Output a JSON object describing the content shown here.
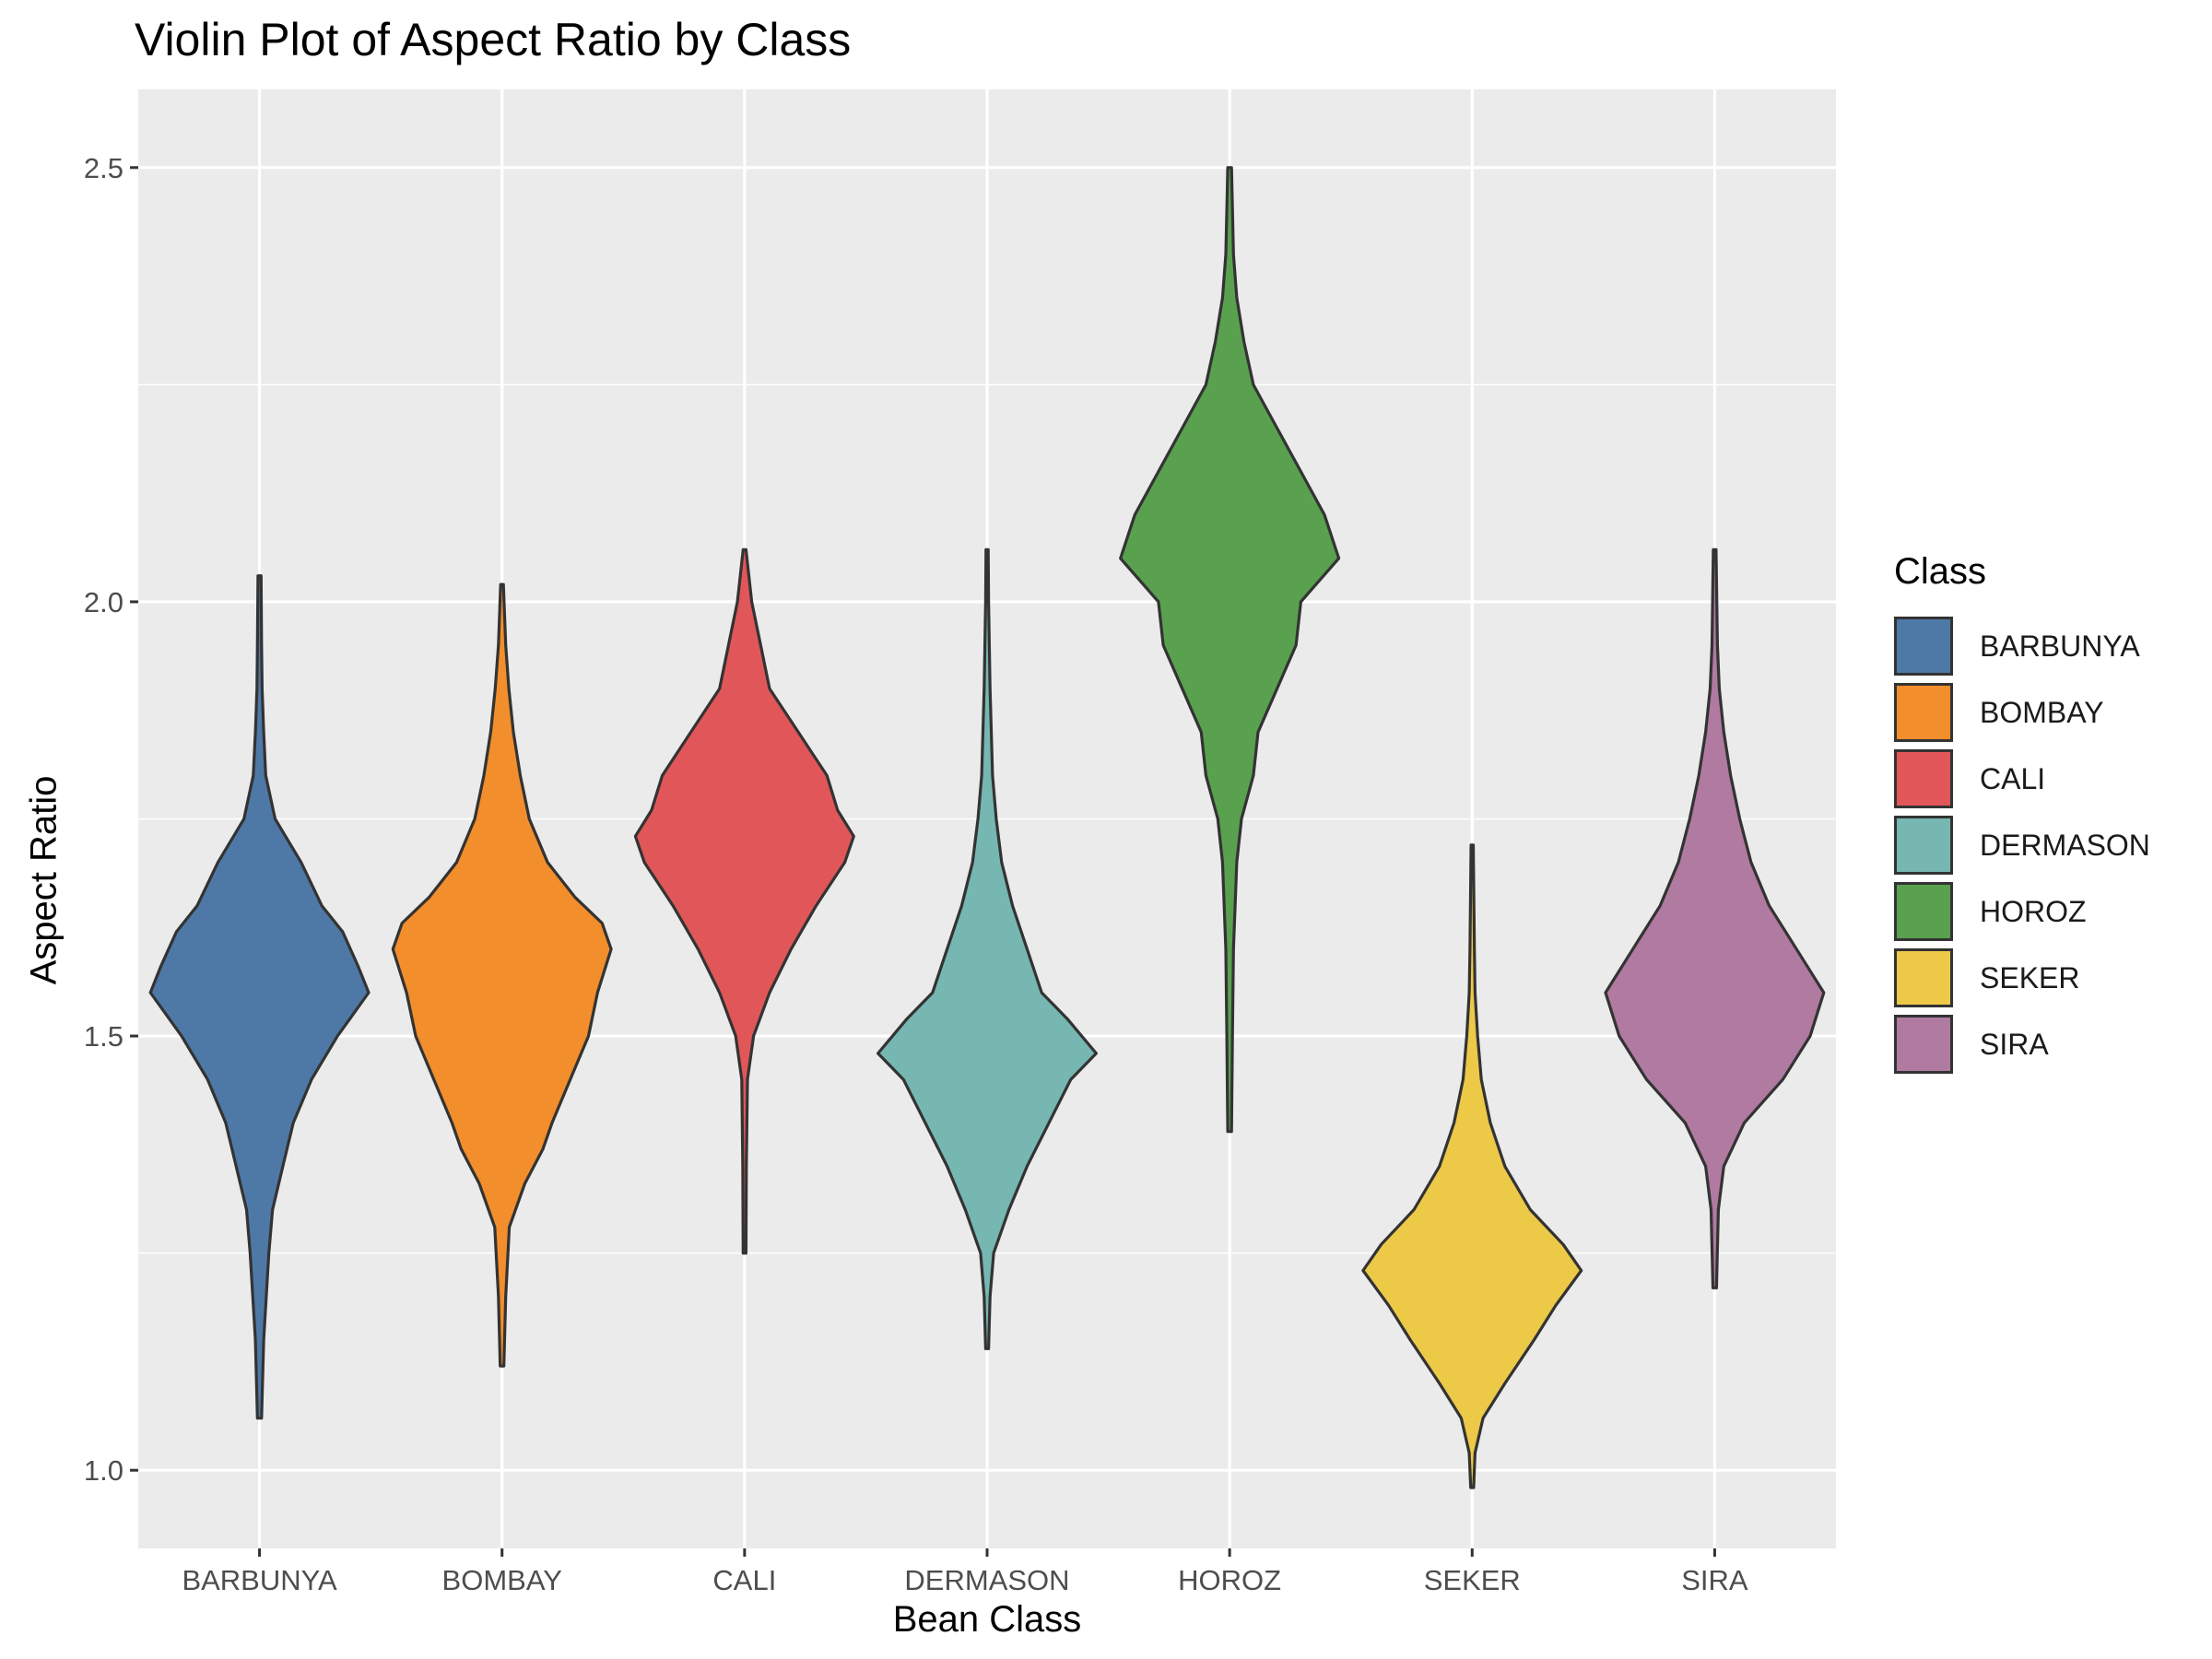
{
  "chart_data": {
    "type": "violin",
    "title": "Violin Plot of Aspect Ratio by Class",
    "xlabel": "Bean Class",
    "ylabel": "Aspect Ratio",
    "ylim": [
      0.91,
      2.59
    ],
    "yticks": [
      "1.0",
      "1.5",
      "2.0",
      "2.5"
    ],
    "grid": true,
    "legend": {
      "title": "Class",
      "position": "right",
      "entries": [
        "BARBUNYA",
        "BOMBAY",
        "CALI",
        "DERMASON",
        "HOROZ",
        "SEKER",
        "SIRA"
      ]
    },
    "categories": [
      "BARBUNYA",
      "BOMBAY",
      "CALI",
      "DERMASON",
      "HOROZ",
      "SEKER",
      "SIRA"
    ],
    "series": [
      {
        "name": "BARBUNYA",
        "color": "#4E79A7",
        "profile": [
          [
            1.06,
            0.004
          ],
          [
            1.15,
            0.008
          ],
          [
            1.25,
            0.018
          ],
          [
            1.3,
            0.025
          ],
          [
            1.35,
            0.045
          ],
          [
            1.4,
            0.065
          ],
          [
            1.45,
            0.1
          ],
          [
            1.5,
            0.15
          ],
          [
            1.55,
            0.21
          ],
          [
            1.58,
            0.19
          ],
          [
            1.62,
            0.16
          ],
          [
            1.65,
            0.12
          ],
          [
            1.7,
            0.08
          ],
          [
            1.75,
            0.03
          ],
          [
            1.8,
            0.012
          ],
          [
            1.85,
            0.008
          ],
          [
            1.9,
            0.005
          ],
          [
            1.95,
            0.004
          ],
          [
            2.03,
            0.003
          ]
        ]
      },
      {
        "name": "BOMBAY",
        "color": "#F28E2B",
        "profile": [
          [
            1.12,
            0.004
          ],
          [
            1.2,
            0.008
          ],
          [
            1.28,
            0.016
          ],
          [
            1.33,
            0.05
          ],
          [
            1.37,
            0.09
          ],
          [
            1.4,
            0.11
          ],
          [
            1.45,
            0.15
          ],
          [
            1.5,
            0.19
          ],
          [
            1.55,
            0.21
          ],
          [
            1.6,
            0.24
          ],
          [
            1.63,
            0.22
          ],
          [
            1.66,
            0.16
          ],
          [
            1.7,
            0.1
          ],
          [
            1.75,
            0.06
          ],
          [
            1.8,
            0.04
          ],
          [
            1.85,
            0.025
          ],
          [
            1.9,
            0.015
          ],
          [
            1.95,
            0.008
          ],
          [
            2.02,
            0.003
          ]
        ]
      },
      {
        "name": "CALI",
        "color": "#E15759",
        "profile": [
          [
            1.25,
            0.004
          ],
          [
            1.35,
            0.005
          ],
          [
            1.45,
            0.008
          ],
          [
            1.5,
            0.025
          ],
          [
            1.55,
            0.07
          ],
          [
            1.6,
            0.13
          ],
          [
            1.65,
            0.2
          ],
          [
            1.7,
            0.28
          ],
          [
            1.73,
            0.305
          ],
          [
            1.76,
            0.26
          ],
          [
            1.8,
            0.23
          ],
          [
            1.85,
            0.15
          ],
          [
            1.9,
            0.07
          ],
          [
            1.95,
            0.045
          ],
          [
            2.0,
            0.02
          ],
          [
            2.06,
            0.004
          ]
        ]
      },
      {
        "name": "DERMASON",
        "color": "#76B7B2",
        "profile": [
          [
            1.14,
            0.004
          ],
          [
            1.2,
            0.008
          ],
          [
            1.25,
            0.018
          ],
          [
            1.3,
            0.06
          ],
          [
            1.35,
            0.11
          ],
          [
            1.4,
            0.17
          ],
          [
            1.45,
            0.23
          ],
          [
            1.48,
            0.3
          ],
          [
            1.52,
            0.22
          ],
          [
            1.55,
            0.15
          ],
          [
            1.6,
            0.11
          ],
          [
            1.65,
            0.07
          ],
          [
            1.7,
            0.04
          ],
          [
            1.75,
            0.025
          ],
          [
            1.8,
            0.015
          ],
          [
            1.9,
            0.008
          ],
          [
            2.0,
            0.004
          ],
          [
            2.06,
            0.003
          ]
        ]
      },
      {
        "name": "HOROZ",
        "color": "#59A14F",
        "profile": [
          [
            1.39,
            0.004
          ],
          [
            1.5,
            0.006
          ],
          [
            1.6,
            0.008
          ],
          [
            1.7,
            0.015
          ],
          [
            1.75,
            0.025
          ],
          [
            1.8,
            0.05
          ],
          [
            1.85,
            0.06
          ],
          [
            1.9,
            0.1
          ],
          [
            1.95,
            0.14
          ],
          [
            2.0,
            0.15
          ],
          [
            2.05,
            0.23
          ],
          [
            2.1,
            0.2
          ],
          [
            2.15,
            0.15
          ],
          [
            2.2,
            0.1
          ],
          [
            2.25,
            0.05
          ],
          [
            2.3,
            0.03
          ],
          [
            2.35,
            0.015
          ],
          [
            2.4,
            0.008
          ],
          [
            2.5,
            0.004
          ]
        ]
      },
      {
        "name": "SEKER",
        "color": "#EDC948",
        "profile": [
          [
            0.98,
            0.004
          ],
          [
            1.02,
            0.008
          ],
          [
            1.06,
            0.03
          ],
          [
            1.1,
            0.09
          ],
          [
            1.15,
            0.17
          ],
          [
            1.19,
            0.23
          ],
          [
            1.23,
            0.3
          ],
          [
            1.26,
            0.25
          ],
          [
            1.3,
            0.16
          ],
          [
            1.35,
            0.09
          ],
          [
            1.4,
            0.05
          ],
          [
            1.45,
            0.025
          ],
          [
            1.5,
            0.015
          ],
          [
            1.55,
            0.008
          ],
          [
            1.6,
            0.006
          ],
          [
            1.72,
            0.003
          ]
        ]
      },
      {
        "name": "SIRA",
        "color": "#B07AA1",
        "profile": [
          [
            1.21,
            0.004
          ],
          [
            1.3,
            0.008
          ],
          [
            1.35,
            0.02
          ],
          [
            1.4,
            0.065
          ],
          [
            1.45,
            0.15
          ],
          [
            1.5,
            0.21
          ],
          [
            1.55,
            0.24
          ],
          [
            1.6,
            0.18
          ],
          [
            1.65,
            0.12
          ],
          [
            1.7,
            0.08
          ],
          [
            1.75,
            0.055
          ],
          [
            1.8,
            0.035
          ],
          [
            1.85,
            0.02
          ],
          [
            1.9,
            0.01
          ],
          [
            1.95,
            0.006
          ],
          [
            2.06,
            0.003
          ]
        ]
      }
    ]
  }
}
